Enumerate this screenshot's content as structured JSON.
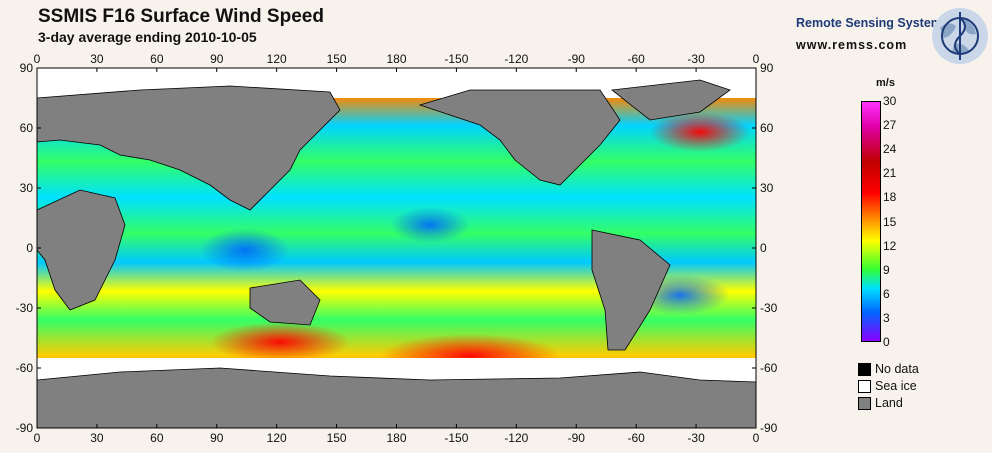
{
  "header": {
    "title": "SSMIS F16 Surface Wind Speed",
    "subtitle": "3-day average ending 2010-10-05"
  },
  "branding": {
    "org": "Remote Sensing Systems",
    "url": "www.remss.com"
  },
  "map": {
    "lon_labels": [
      "0",
      "30",
      "60",
      "90",
      "120",
      "150",
      "180",
      "-150",
      "-120",
      "-90",
      "-60",
      "-30",
      "0"
    ],
    "lat_labels": [
      "90",
      "60",
      "30",
      "0",
      "-30",
      "-60",
      "-90"
    ],
    "land_color": "#808080",
    "seaice_color": "#ffffff",
    "nodata_color": "#000000"
  },
  "legend": {
    "unit": "m/s",
    "ticks": [
      "30",
      "27",
      "24",
      "21",
      "18",
      "15",
      "12",
      "9",
      "6",
      "3",
      "0"
    ],
    "scale_min": 0,
    "scale_max": 30,
    "keys": [
      {
        "label": "No data",
        "color": "#000000"
      },
      {
        "label": "Sea ice",
        "color": "#ffffff"
      },
      {
        "label": "Land",
        "color": "#808080"
      }
    ]
  }
}
